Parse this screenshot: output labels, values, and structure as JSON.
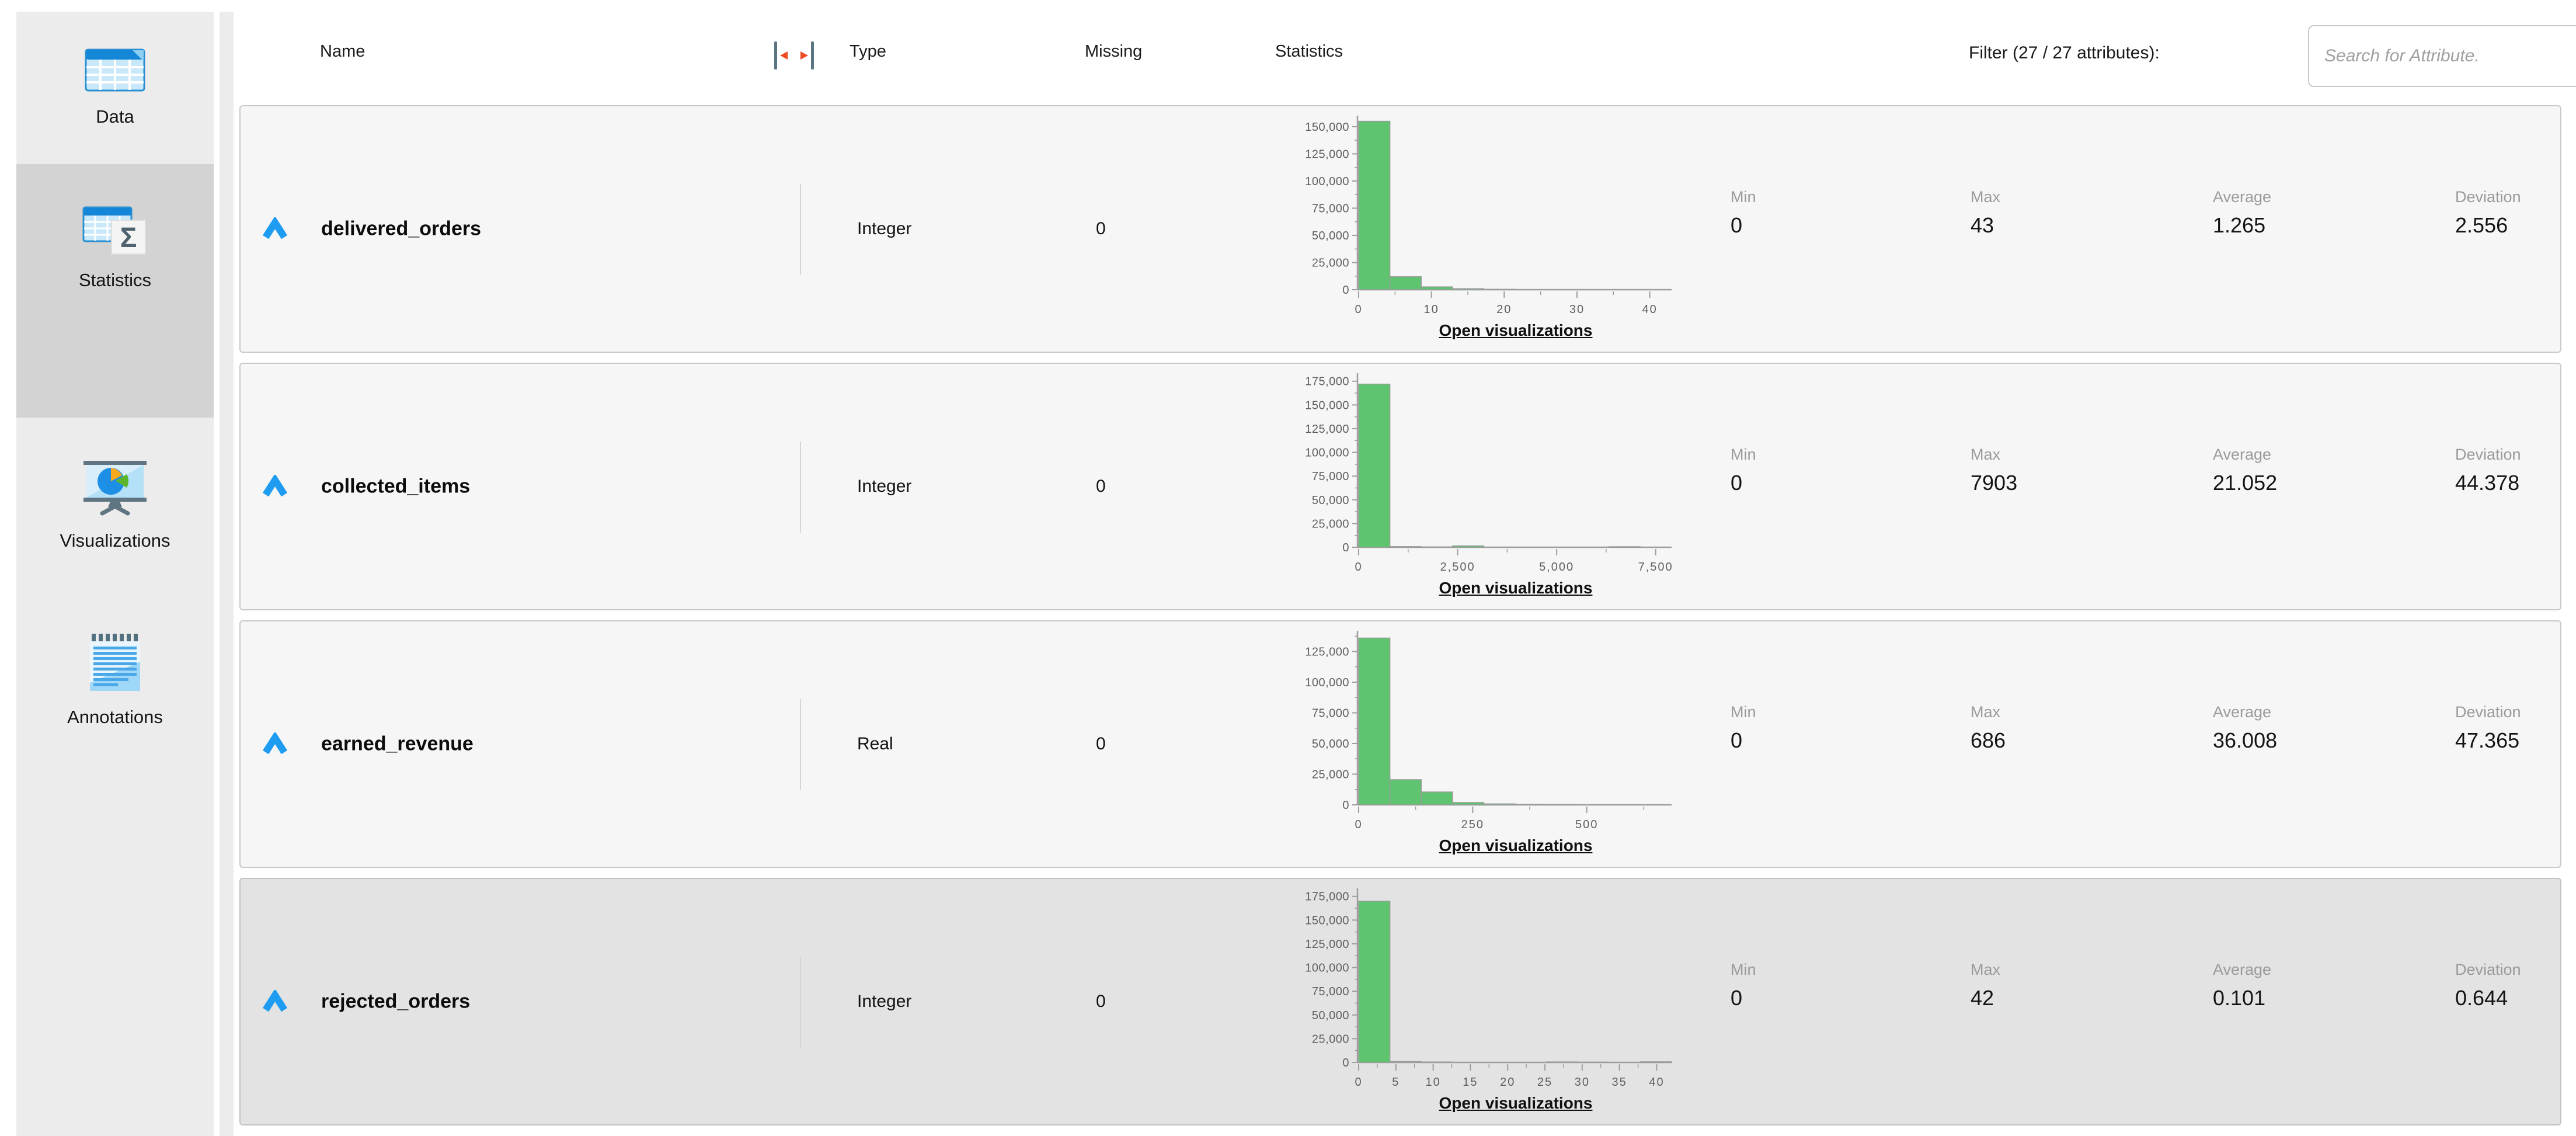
{
  "sidebar": {
    "items": [
      {
        "label": "Data",
        "icon": "data-table-icon",
        "selected": false
      },
      {
        "label": "Statistics",
        "icon": "statistics-sigma-icon",
        "selected": true
      },
      {
        "label": "Visualizations",
        "icon": "visualizations-chart-icon",
        "selected": false
      },
      {
        "label": "Annotations",
        "icon": "annotations-note-icon",
        "selected": false
      }
    ]
  },
  "header": {
    "name": "Name",
    "type": "Type",
    "missing": "Missing",
    "statistics": "Statistics",
    "filter_label": "Filter (27 / 27 attributes):",
    "search_placeholder": "Search for Attribute.",
    "search_value": ""
  },
  "labels": {
    "min": "Min",
    "max": "Max",
    "average": "Average",
    "deviation": "Deviation",
    "open_visualizations": "Open visualizations"
  },
  "colors": {
    "bar_fill": "#5ec46f",
    "bar_stroke": "#9b9b9b",
    "axis": "#9e9e9e",
    "axis_text": "#5f5f5f",
    "accent_blue": "#1e9cf2",
    "row_bg": "#f6f6f6",
    "selected_row_bg": "#e3e3e3",
    "sidebar_bg": "#ececec",
    "sidebar_selected_bg": "#d3d3d3",
    "resize_arrow_red": "#ee4b23"
  },
  "rows": [
    {
      "name": "delivered_orders",
      "type": "Integer",
      "missing": "0",
      "min": "0",
      "max": "43",
      "average": "1.265",
      "deviation": "2.556",
      "selected": false
    },
    {
      "name": "collected_items",
      "type": "Integer",
      "missing": "0",
      "min": "0",
      "max": "7903",
      "average": "21.052",
      "deviation": "44.378",
      "selected": false
    },
    {
      "name": "earned_revenue",
      "type": "Real",
      "missing": "0",
      "min": "0",
      "max": "686",
      "average": "36.008",
      "deviation": "47.365",
      "selected": false
    },
    {
      "name": "rejected_orders",
      "type": "Integer",
      "missing": "0",
      "min": "0",
      "max": "42",
      "average": "0.101",
      "deviation": "0.644",
      "selected": true
    }
  ],
  "chart_data": [
    {
      "type": "bar",
      "name": "delivered_orders histogram",
      "values": [
        155000,
        12000,
        2600,
        950,
        420,
        260,
        160,
        100,
        60,
        40
      ],
      "xlim": [
        0,
        43
      ],
      "x_ticks": [
        0,
        10,
        20,
        30,
        40
      ],
      "ylim": [
        0,
        158000
      ],
      "y_ticks": [
        0,
        25000,
        50000,
        75000,
        100000,
        125000,
        150000
      ],
      "grid": false
    },
    {
      "type": "bar",
      "name": "collected_items histogram",
      "values": [
        172000,
        700,
        350,
        1500,
        250,
        150,
        100,
        80,
        600,
        250
      ],
      "xlim": [
        0,
        7903
      ],
      "x_ticks": [
        0,
        2500,
        5000,
        7500
      ],
      "ylim": [
        0,
        181000
      ],
      "y_ticks": [
        0,
        25000,
        50000,
        75000,
        100000,
        125000,
        150000,
        175000
      ],
      "grid": false
    },
    {
      "type": "bar",
      "name": "earned_revenue histogram",
      "values": [
        136000,
        20500,
        10500,
        1900,
        800,
        450,
        280,
        180,
        120,
        80
      ],
      "xlim": [
        0,
        686
      ],
      "x_ticks": [
        0,
        250,
        500
      ],
      "ylim": [
        0,
        140000
      ],
      "y_ticks": [
        0,
        25000,
        50000,
        75000,
        100000,
        125000
      ],
      "grid": false
    },
    {
      "type": "bar",
      "name": "rejected_orders histogram",
      "values": [
        170000,
        900,
        450,
        280,
        180,
        120,
        520,
        320,
        150,
        650
      ],
      "xlim": [
        0,
        42
      ],
      "x_ticks": [
        0,
        5,
        10,
        15,
        20,
        25,
        30,
        35,
        40
      ],
      "ylim": [
        0,
        181000
      ],
      "y_ticks": [
        0,
        25000,
        50000,
        75000,
        100000,
        125000,
        150000,
        175000
      ],
      "grid": false
    }
  ]
}
